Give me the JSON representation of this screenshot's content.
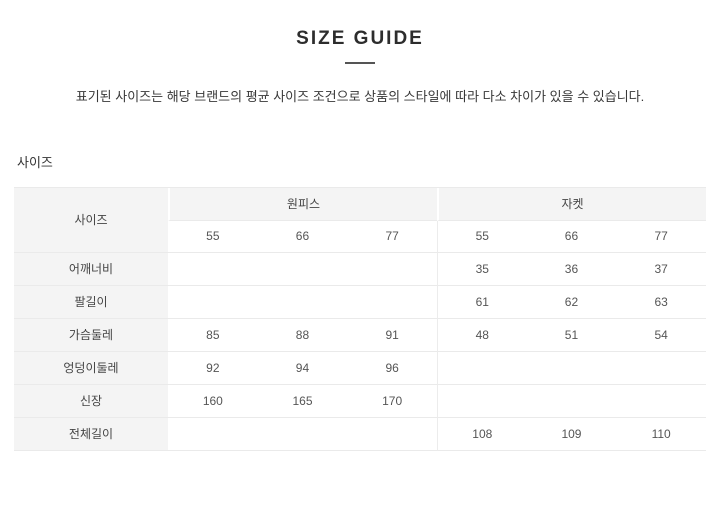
{
  "page": {
    "title": "SIZE GUIDE",
    "description": "표기된 사이즈는 해당 브랜드의 평균 사이즈 조건으로 상품의 스타일에 따라 다소 차이가 있을 수 있습니다.",
    "section_label": "사이즈"
  },
  "table": {
    "corner_header": "사이즈",
    "groups": [
      {
        "label": "원피스",
        "sizes": [
          "55",
          "66",
          "77"
        ]
      },
      {
        "label": "자켓",
        "sizes": [
          "55",
          "66",
          "77"
        ]
      }
    ],
    "rows": [
      {
        "label": "어깨너비",
        "cells": [
          "",
          "",
          "",
          "35",
          "36",
          "37"
        ]
      },
      {
        "label": "팔길이",
        "cells": [
          "",
          "",
          "",
          "61",
          "62",
          "63"
        ]
      },
      {
        "label": "가슴둘레",
        "cells": [
          "85",
          "88",
          "91",
          "48",
          "51",
          "54"
        ]
      },
      {
        "label": "엉덩이둘레",
        "cells": [
          "92",
          "94",
          "96",
          "",
          "",
          ""
        ]
      },
      {
        "label": "신장",
        "cells": [
          "160",
          "165",
          "170",
          "",
          "",
          ""
        ]
      },
      {
        "label": "전체길이",
        "cells": [
          "",
          "",
          "",
          "108",
          "109",
          "110"
        ]
      }
    ]
  },
  "colors": {
    "header_bg": "#f4f4f4",
    "border": "#eaeaea",
    "title_text": "#2d2d2d",
    "label_text": "#444444",
    "value_text": "#555555"
  }
}
